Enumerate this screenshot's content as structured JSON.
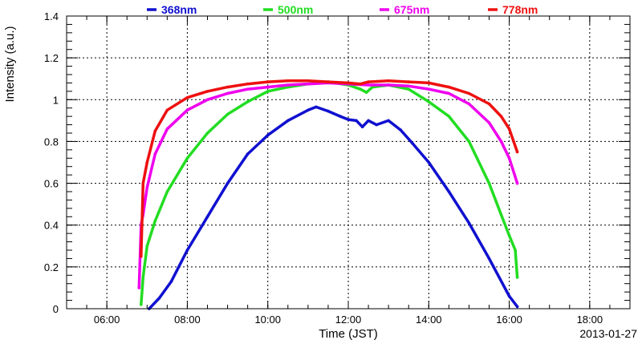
{
  "chart_data": {
    "type": "scatter",
    "xlabel": "Time (JST)",
    "ylabel": "Intensity (a.u.)",
    "date": "2013-01-27",
    "xlim": [
      5.0,
      19.0
    ],
    "ylim": [
      0,
      1.4
    ],
    "x_ticks": [
      "06:00",
      "08:00",
      "10:00",
      "12:00",
      "14:00",
      "16:00",
      "18:00"
    ],
    "x_tick_values": [
      6,
      8,
      10,
      12,
      14,
      16,
      18
    ],
    "y_ticks": [
      "0",
      "0.2",
      "0.4",
      "0.6",
      "0.8",
      "1",
      "1.2",
      "1.4"
    ],
    "y_tick_values": [
      0,
      0.2,
      0.4,
      0.6,
      0.8,
      1.0,
      1.2,
      1.4
    ],
    "grid": true,
    "legend_placement": "top",
    "series": [
      {
        "name": "368nm",
        "color": "#1010d0",
        "points": [
          [
            7.05,
            0.0
          ],
          [
            7.3,
            0.05
          ],
          [
            7.6,
            0.13
          ],
          [
            8.0,
            0.28
          ],
          [
            8.5,
            0.44
          ],
          [
            9.0,
            0.6
          ],
          [
            9.5,
            0.74
          ],
          [
            10.0,
            0.83
          ],
          [
            10.5,
            0.9
          ],
          [
            11.0,
            0.95
          ],
          [
            11.2,
            0.965
          ],
          [
            11.5,
            0.945
          ],
          [
            11.8,
            0.92
          ],
          [
            12.0,
            0.905
          ],
          [
            12.2,
            0.9
          ],
          [
            12.35,
            0.87
          ],
          [
            12.5,
            0.9
          ],
          [
            12.7,
            0.88
          ],
          [
            13.0,
            0.9
          ],
          [
            13.3,
            0.855
          ],
          [
            13.6,
            0.79
          ],
          [
            14.0,
            0.7
          ],
          [
            14.5,
            0.56
          ],
          [
            15.0,
            0.41
          ],
          [
            15.5,
            0.24
          ],
          [
            16.0,
            0.06
          ],
          [
            16.2,
            0.01
          ]
        ]
      },
      {
        "name": "500nm",
        "color": "#22dd22",
        "points": [
          [
            6.85,
            0.02
          ],
          [
            6.9,
            0.15
          ],
          [
            7.0,
            0.3
          ],
          [
            7.2,
            0.42
          ],
          [
            7.5,
            0.56
          ],
          [
            8.0,
            0.72
          ],
          [
            8.5,
            0.84
          ],
          [
            9.0,
            0.93
          ],
          [
            9.5,
            0.99
          ],
          [
            10.0,
            1.04
          ],
          [
            10.5,
            1.06
          ],
          [
            11.0,
            1.075
          ],
          [
            11.5,
            1.085
          ],
          [
            12.0,
            1.07
          ],
          [
            12.3,
            1.05
          ],
          [
            12.45,
            1.035
          ],
          [
            12.6,
            1.06
          ],
          [
            13.0,
            1.07
          ],
          [
            13.5,
            1.05
          ],
          [
            14.0,
            0.99
          ],
          [
            14.5,
            0.92
          ],
          [
            15.0,
            0.8
          ],
          [
            15.5,
            0.6
          ],
          [
            15.8,
            0.45
          ],
          [
            16.0,
            0.35
          ],
          [
            16.15,
            0.28
          ],
          [
            16.2,
            0.15
          ]
        ]
      },
      {
        "name": "675nm",
        "color": "#ee00ee",
        "points": [
          [
            6.8,
            0.1
          ],
          [
            6.85,
            0.4
          ],
          [
            6.9,
            0.45
          ],
          [
            7.0,
            0.58
          ],
          [
            7.2,
            0.74
          ],
          [
            7.5,
            0.86
          ],
          [
            8.0,
            0.95
          ],
          [
            8.5,
            1.0
          ],
          [
            9.0,
            1.03
          ],
          [
            9.5,
            1.05
          ],
          [
            10.0,
            1.06
          ],
          [
            10.5,
            1.07
          ],
          [
            11.0,
            1.075
          ],
          [
            11.5,
            1.08
          ],
          [
            12.0,
            1.075
          ],
          [
            12.5,
            1.07
          ],
          [
            13.0,
            1.07
          ],
          [
            13.5,
            1.065
          ],
          [
            14.0,
            1.05
          ],
          [
            14.5,
            1.03
          ],
          [
            15.0,
            0.98
          ],
          [
            15.5,
            0.89
          ],
          [
            15.8,
            0.8
          ],
          [
            16.0,
            0.72
          ],
          [
            16.2,
            0.6
          ]
        ]
      },
      {
        "name": "778nm",
        "color": "#ee1010",
        "points": [
          [
            6.85,
            0.25
          ],
          [
            6.9,
            0.6
          ],
          [
            7.0,
            0.7
          ],
          [
            7.2,
            0.85
          ],
          [
            7.5,
            0.95
          ],
          [
            8.0,
            1.01
          ],
          [
            8.5,
            1.04
          ],
          [
            9.0,
            1.06
          ],
          [
            9.5,
            1.075
          ],
          [
            10.0,
            1.085
          ],
          [
            10.5,
            1.09
          ],
          [
            11.0,
            1.09
          ],
          [
            11.5,
            1.085
          ],
          [
            12.0,
            1.08
          ],
          [
            12.3,
            1.075
          ],
          [
            12.5,
            1.085
          ],
          [
            13.0,
            1.09
          ],
          [
            13.5,
            1.085
          ],
          [
            14.0,
            1.08
          ],
          [
            14.5,
            1.06
          ],
          [
            15.0,
            1.03
          ],
          [
            15.5,
            0.98
          ],
          [
            15.8,
            0.92
          ],
          [
            16.0,
            0.86
          ],
          [
            16.2,
            0.75
          ]
        ]
      }
    ]
  }
}
